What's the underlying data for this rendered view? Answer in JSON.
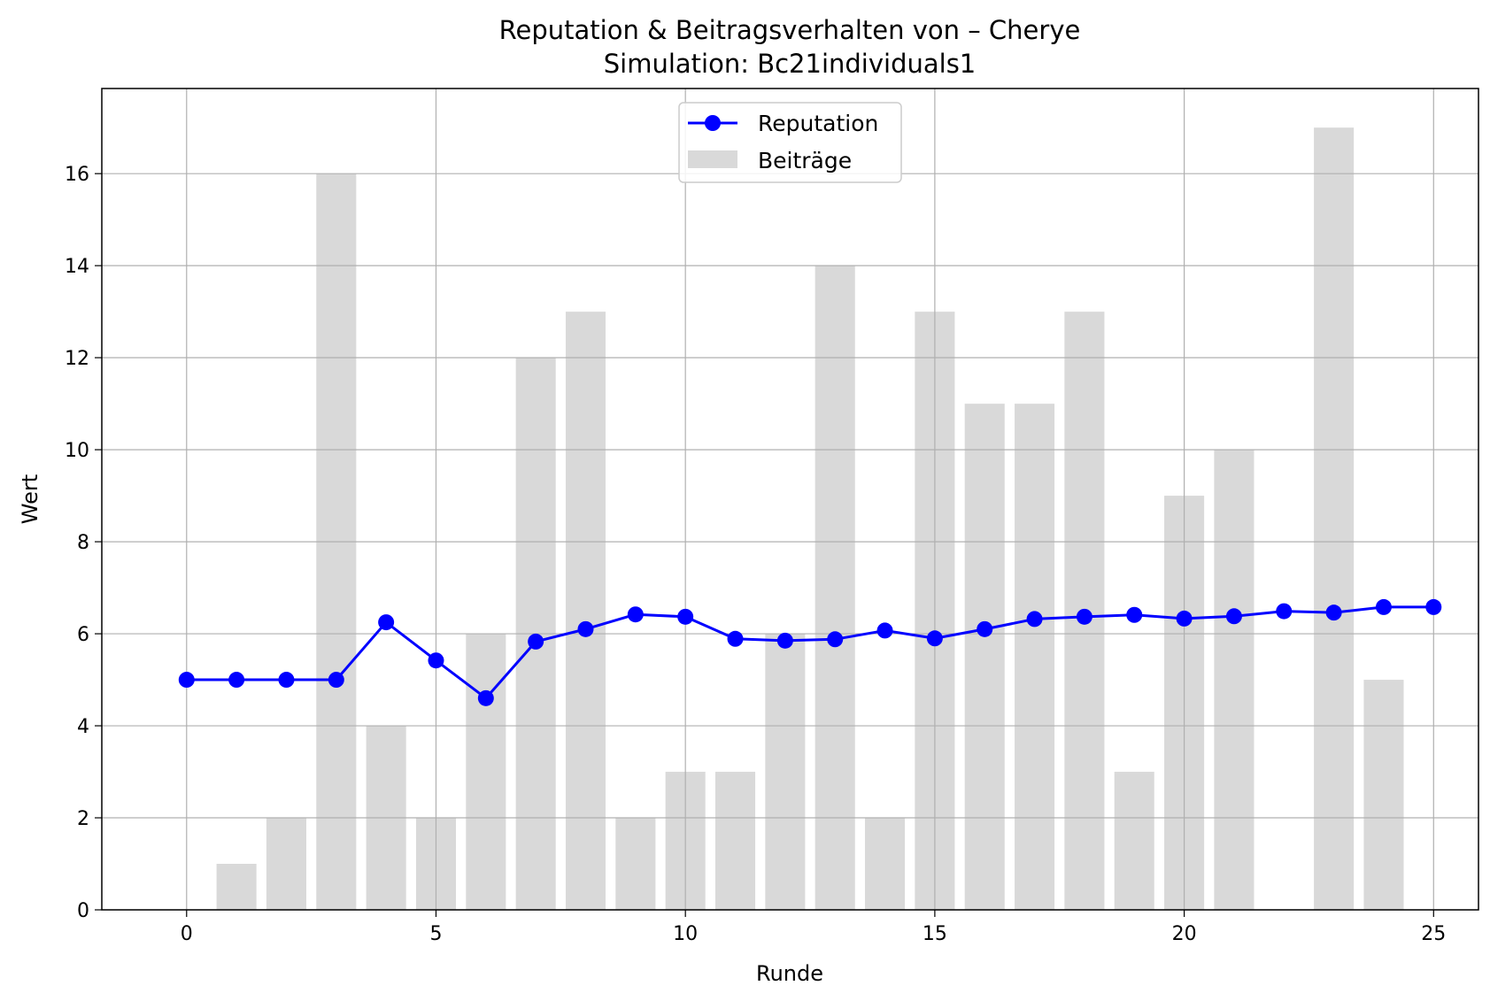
{
  "chart_data": {
    "type": "bar",
    "title": "Reputation & Beitragsverhalten von – Cherye",
    "subtitle": "Simulation: Bc21individuals1",
    "xlabel": "Runde",
    "ylabel": "Wert",
    "xlim": [
      -1.7,
      25.9
    ],
    "ylim": [
      0,
      17.85
    ],
    "xticks": [
      0,
      5,
      10,
      15,
      20,
      25
    ],
    "yticks": [
      0,
      2,
      4,
      6,
      8,
      10,
      12,
      14,
      16
    ],
    "grid": true,
    "legend_position": "top-center",
    "x": [
      0,
      1,
      2,
      3,
      4,
      5,
      6,
      7,
      8,
      9,
      10,
      11,
      12,
      13,
      14,
      15,
      16,
      17,
      18,
      19,
      20,
      21,
      22,
      23,
      24,
      25
    ],
    "series": [
      {
        "name": "Reputation",
        "kind": "line",
        "color": "#0000ff",
        "values": [
          5.0,
          5.0,
          5.0,
          5.0,
          6.25,
          5.42,
          4.6,
          5.83,
          6.1,
          6.42,
          6.37,
          5.89,
          5.85,
          5.88,
          6.07,
          5.9,
          6.1,
          6.32,
          6.37,
          6.41,
          6.33,
          6.38,
          6.49,
          6.46,
          6.58,
          6.58
        ]
      },
      {
        "name": "Beiträge",
        "kind": "bar",
        "color": "#d9d9d9",
        "values": [
          0,
          1,
          2,
          16,
          4,
          2,
          6,
          12,
          13,
          2,
          3,
          3,
          6,
          14,
          2,
          13,
          11,
          11,
          13,
          3,
          9,
          10,
          0,
          17,
          5,
          0
        ]
      }
    ]
  }
}
